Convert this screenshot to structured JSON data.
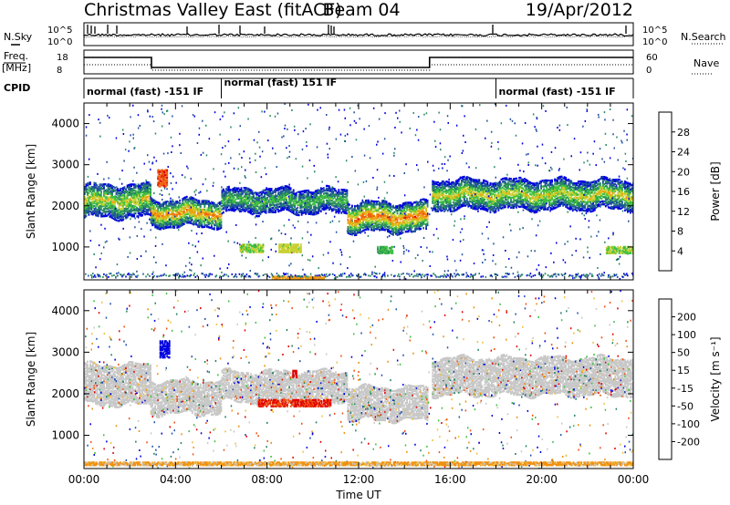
{
  "header": {
    "title": "Christmas Valley East (fitACF)",
    "beam": "Beam 04",
    "date": "19/Apr/2012"
  },
  "panels": {
    "nsky_label": "N.Sky",
    "nsearch_label": "N.Search",
    "noise_left_ticks": [
      "10^5",
      "10^0"
    ],
    "noise_right_ticks": [
      "10^5",
      "10^0"
    ],
    "freq_label_1": "Freq.",
    "freq_label_2": "[MHz]",
    "freq_ticks": [
      "18",
      "8"
    ],
    "nave_label": "Nave",
    "nave_ticks": [
      "60",
      "0"
    ],
    "cpid_label": "CPID",
    "cpid_segments": [
      {
        "label": "normal (fast) -151 IF",
        "start_h": 0,
        "end_h": 6
      },
      {
        "label": "normal (fast) 151 IF",
        "start_h": 6,
        "end_h": 18
      },
      {
        "label": "normal (fast) -151 IF",
        "start_h": 18,
        "end_h": 24
      }
    ]
  },
  "chart_data": [
    {
      "type": "heatmap",
      "name": "power",
      "xlabel": "",
      "ylabel": "Slant Range [km]",
      "xlim": [
        0,
        24
      ],
      "ylim": [
        200,
        4500
      ],
      "yticks": [
        1000,
        2000,
        3000,
        4000
      ],
      "colorbar": {
        "label": "Power [dB]",
        "ticks": [
          "4",
          "8",
          "12",
          "16",
          "20",
          "24",
          "28"
        ],
        "colors": [
          "#0000e0",
          "#2050a0",
          "#2a8a60",
          "#40c040",
          "#c8d030",
          "#f0a010",
          "#f06010",
          "#e00000"
        ]
      },
      "bands": [
        {
          "start_h": 0.0,
          "end_h": 2.9,
          "center_km": 2150,
          "width_km": 250,
          "level": 0.6
        },
        {
          "start_h": 2.9,
          "end_h": 6.0,
          "center_km": 1850,
          "width_km": 200,
          "level": 0.75
        },
        {
          "start_h": 6.0,
          "end_h": 11.5,
          "center_km": 2150,
          "width_km": 180,
          "level": 0.45
        },
        {
          "start_h": 11.5,
          "end_h": 15.0,
          "center_km": 1750,
          "width_km": 220,
          "level": 0.8
        },
        {
          "start_h": 15.2,
          "end_h": 24.0,
          "center_km": 2300,
          "width_km": 220,
          "level": 0.6
        }
      ],
      "patches": [
        {
          "start_h": 3.2,
          "end_h": 3.6,
          "center_km": 2700,
          "width_km": 400,
          "level": 0.85
        },
        {
          "start_h": 6.8,
          "end_h": 7.8,
          "center_km": 1000,
          "width_km": 200,
          "level": 0.5
        },
        {
          "start_h": 8.5,
          "end_h": 9.5,
          "center_km": 1000,
          "width_km": 200,
          "level": 0.55
        },
        {
          "start_h": 12.8,
          "end_h": 13.5,
          "center_km": 950,
          "width_km": 150,
          "level": 0.4
        },
        {
          "start_h": 22.8,
          "end_h": 24.0,
          "center_km": 950,
          "width_km": 150,
          "level": 0.5
        },
        {
          "start_h": 8.2,
          "end_h": 10.5,
          "center_km": 280,
          "width_km": 80,
          "level": 0.7
        }
      ]
    },
    {
      "type": "heatmap",
      "name": "velocity",
      "xlabel": "Time UT",
      "ylabel": "Slant Range [km]",
      "xlim": [
        0,
        24
      ],
      "ylim": [
        200,
        4500
      ],
      "yticks": [
        1000,
        2000,
        3000,
        4000
      ],
      "xticks": [
        "00:00",
        "04:00",
        "08:00",
        "12:00",
        "16:00",
        "20:00",
        "00:00"
      ],
      "colorbar": {
        "label": "Velocity [m s⁻¹]",
        "ticks": [
          "-200",
          "-100",
          "-50",
          "-15",
          "15",
          "50",
          "100",
          "200"
        ],
        "colors": [
          "#e00000",
          "#f05010",
          "#f09010",
          "#f0c040",
          "#c8c8c8",
          "#40c040",
          "#208060",
          "#2050b0",
          "#0000e0"
        ]
      },
      "bands": [
        {
          "start_h": 0.0,
          "end_h": 2.9,
          "center_km": 2250,
          "width_km": 300,
          "level": 0.5
        },
        {
          "start_h": 2.9,
          "end_h": 6.0,
          "center_km": 1950,
          "width_km": 250,
          "level": 0.5
        },
        {
          "start_h": 6.0,
          "end_h": 11.5,
          "center_km": 2200,
          "width_km": 220,
          "level": 0.5
        },
        {
          "start_h": 11.5,
          "end_h": 15.0,
          "center_km": 1800,
          "width_km": 250,
          "level": 0.5
        },
        {
          "start_h": 15.2,
          "end_h": 24.0,
          "center_km": 2450,
          "width_km": 280,
          "level": 0.5
        }
      ],
      "patches": [
        {
          "start_h": 3.3,
          "end_h": 3.7,
          "center_km": 3100,
          "width_km": 400,
          "level": 1.0
        },
        {
          "start_h": 7.6,
          "end_h": 10.8,
          "center_km": 1800,
          "width_km": 150,
          "level": 0.1
        },
        {
          "start_h": 9.1,
          "end_h": 9.3,
          "center_km": 2500,
          "width_km": 150,
          "level": 0.05
        },
        {
          "start_h": 0.0,
          "end_h": 24.0,
          "center_km": 350,
          "width_km": 80,
          "level": 0.3
        }
      ]
    }
  ]
}
